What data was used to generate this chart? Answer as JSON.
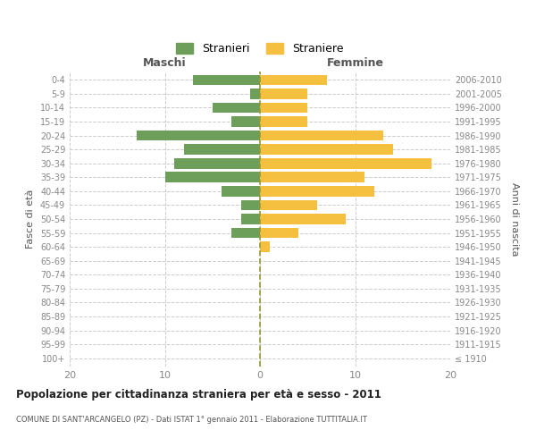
{
  "age_groups": [
    "100+",
    "95-99",
    "90-94",
    "85-89",
    "80-84",
    "75-79",
    "70-74",
    "65-69",
    "60-64",
    "55-59",
    "50-54",
    "45-49",
    "40-44",
    "35-39",
    "30-34",
    "25-29",
    "20-24",
    "15-19",
    "10-14",
    "5-9",
    "0-4"
  ],
  "birth_years": [
    "≤ 1910",
    "1911-1915",
    "1916-1920",
    "1921-1925",
    "1926-1930",
    "1931-1935",
    "1936-1940",
    "1941-1945",
    "1946-1950",
    "1951-1955",
    "1956-1960",
    "1961-1965",
    "1966-1970",
    "1971-1975",
    "1976-1980",
    "1981-1985",
    "1986-1990",
    "1991-1995",
    "1996-2000",
    "2001-2005",
    "2006-2010"
  ],
  "males": [
    0,
    0,
    0,
    0,
    0,
    0,
    0,
    0,
    0,
    3,
    2,
    2,
    4,
    10,
    9,
    8,
    13,
    3,
    5,
    1,
    7
  ],
  "females": [
    0,
    0,
    0,
    0,
    0,
    0,
    0,
    0,
    1,
    4,
    9,
    6,
    12,
    11,
    18,
    14,
    13,
    5,
    5,
    5,
    7
  ],
  "male_color": "#6d9e5a",
  "female_color": "#f5c040",
  "background_color": "#ffffff",
  "grid_color": "#cccccc",
  "title": "Popolazione per cittadinanza straniera per età e sesso - 2011",
  "subtitle": "COMUNE DI SANT'ARCANGELO (PZ) - Dati ISTAT 1° gennaio 2011 - Elaborazione TUTTITALIA.IT",
  "left_label": "Maschi",
  "right_label": "Femmine",
  "ylabel_left": "Fasce di età",
  "ylabel_right": "Anni di nascita",
  "legend_male": "Stranieri",
  "legend_female": "Straniere",
  "xlim": 20,
  "bar_height": 0.75
}
